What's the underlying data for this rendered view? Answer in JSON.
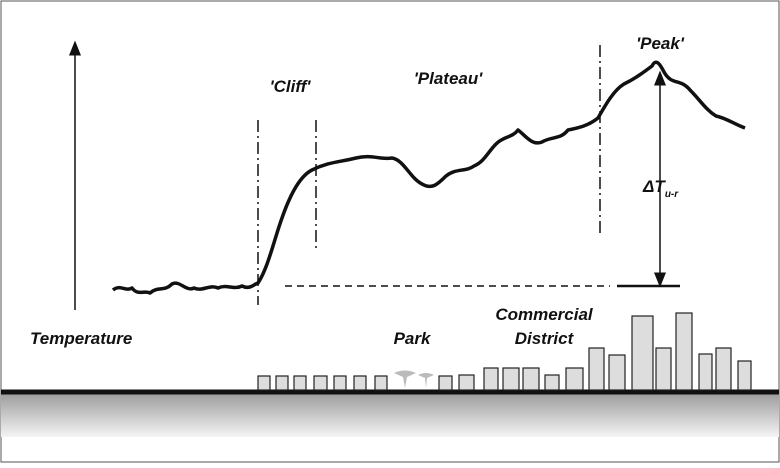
{
  "labels": {
    "cliff": "'Cliff'",
    "plateau": "'Plateau'",
    "peak": "'Peak'",
    "delta_t": {
      "main": "ΔT",
      "sub": "u-r"
    },
    "temperature": "Temperature",
    "park": "Park",
    "commercial_district": [
      "Commercial",
      "District"
    ]
  }
}
